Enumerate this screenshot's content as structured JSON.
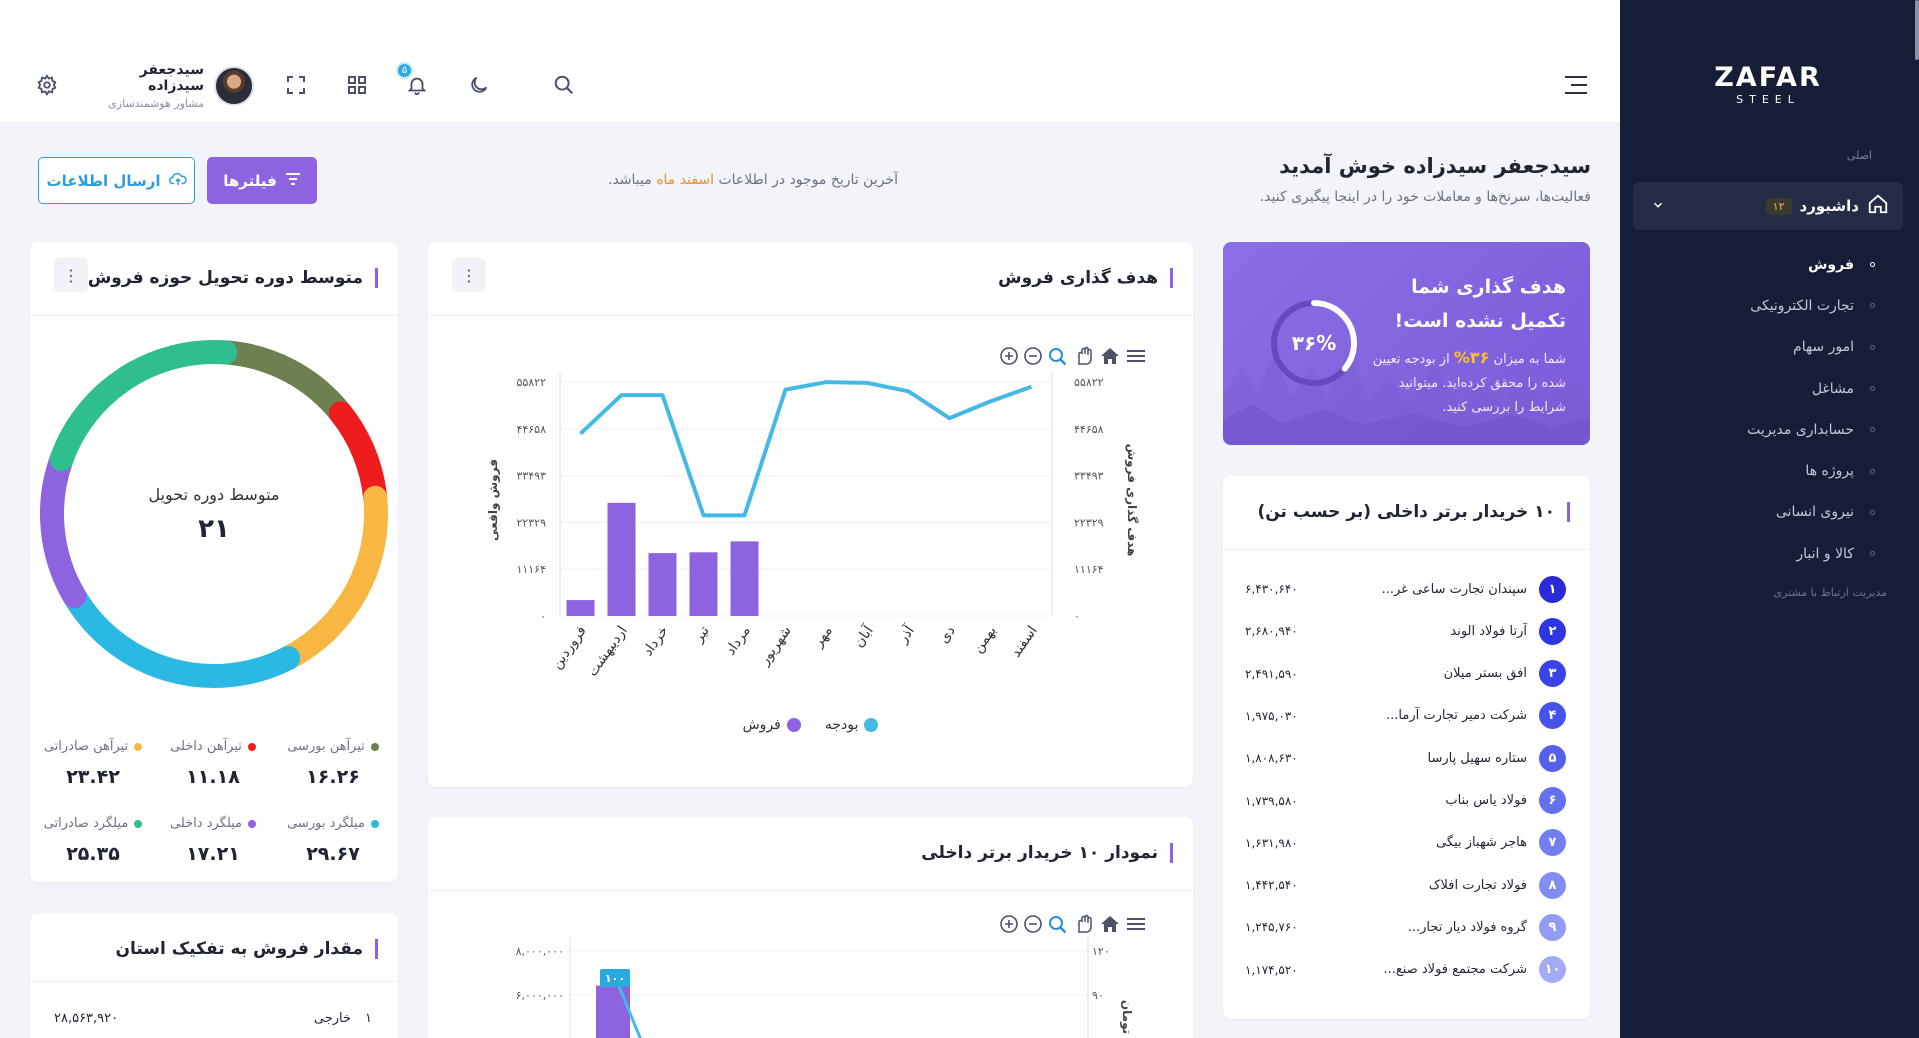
{
  "sidebar": {
    "logo_main": "ZAFAR",
    "logo_sub": "STEEL",
    "section_label": "اصلی",
    "dashboard_label": "داشبورد",
    "dashboard_badge": "۱۲",
    "items": [
      {
        "label": "فروش",
        "active": true
      },
      {
        "label": "تجارت الکترونیکی"
      },
      {
        "label": "امور سهام"
      },
      {
        "label": "مشاغل"
      },
      {
        "label": "حسابداری مدیریت"
      },
      {
        "label": "پروژه ها"
      },
      {
        "label": "نیروی انسانی"
      },
      {
        "label": "کالا و انبار"
      }
    ],
    "footer_label": "مدیریت ارتباط با مشتری"
  },
  "header": {
    "user_name": "سیدجعفر سیدزاده",
    "user_role": "مشاور هوشمندسازی",
    "notif_count": "۵"
  },
  "page": {
    "welcome_title": "سیدجعفر سیدزاده خوش آمدید",
    "welcome_sub": "فعالیت‌ها، سرنخ‌ها و معاملات خود را در اینجا پیگیری کنید.",
    "last_date_pre": "آخرین تاریخ موجود در اطلاعات",
    "last_date_hl": "اسفند ماه",
    "last_date_post": "میباشد.",
    "filter_btn": "فیلترها",
    "send_btn": "ارسال اطلاعات"
  },
  "goal": {
    "title": "هدف گذاری شما تکمیل نشده است!",
    "text_pre": "شما به میزان",
    "text_pct": "۳۶%",
    "text_post": "از بودجه تعیین شده را محقق کرده‌اید. میتوانید شرایط را بررسی کنید.",
    "ring_label": "۳۶%",
    "progress": 0.36
  },
  "buyers": {
    "title": "۱۰ خریدار برتر داخلی (بر حسب تن)",
    "rows": [
      {
        "num": "۱",
        "name": "سپندان تجارت ساعی غر...",
        "value": "۶,۴۳۰,۶۴۰",
        "color": "#2a2ad6"
      },
      {
        "num": "۲",
        "name": "آرتا فولاد الوند",
        "value": "۲,۶۸۰,۹۴۰",
        "color": "#2f35e0"
      },
      {
        "num": "۳",
        "name": "افق بستر میلان",
        "value": "۲,۴۹۱,۵۹۰",
        "color": "#3a44e6"
      },
      {
        "num": "۴",
        "name": "شرکت دمیر تجارت آرما...",
        "value": "۱,۹۷۵,۰۳۰",
        "color": "#4652ea"
      },
      {
        "num": "۵",
        "name": "ستاره سهیل پارسا",
        "value": "۱,۸۰۸,۶۳۰",
        "color": "#5561ed"
      },
      {
        "num": "۶",
        "name": "فولاد یاس بناب",
        "value": "۱,۷۳۹,۵۸۰",
        "color": "#6470ef"
      },
      {
        "num": "۷",
        "name": "هاجر شهباز بیگی",
        "value": "۱,۶۳۱,۹۸۰",
        "color": "#737ff1"
      },
      {
        "num": "۸",
        "name": "فولاد تجارت افلاک",
        "value": "۱,۴۴۲,۵۴۰",
        "color": "#828df3"
      },
      {
        "num": "۹",
        "name": "گروه فولاد دیار تجار...",
        "value": "۱,۲۴۵,۷۶۰",
        "color": "#939cf5"
      },
      {
        "num": "۱۰",
        "name": "شرکت مجتمع فولاد صنع...",
        "value": "۱,۱۷۴,۵۲۰",
        "color": "#a3abf7"
      }
    ]
  },
  "sales_goal": {
    "title": "هدف گذاری فروش",
    "legend_budget": "بودجه",
    "legend_sales": "فروش",
    "left_axis_title": "فروش واقعی",
    "right_axis_title": "هدف گذاری فروش"
  },
  "top10_chart": {
    "title": "نمودار ۱۰ خریدار برتر داخلی",
    "data_label": "۱۰۰",
    "right_axis_title": "تومان"
  },
  "delivery": {
    "title": "متوسط دوره تحویل حوزه فروش",
    "center_label": "متوسط دوره تحویل",
    "center_value": "۲۱",
    "legend": [
      {
        "label": "تیرآهن بورسی",
        "value": "۱۶.۲۶",
        "color": "#6e8050"
      },
      {
        "label": "تیرآهن داخلی",
        "value": "۱۱.۱۸",
        "color": "#ee1c1c"
      },
      {
        "label": "تیرآهن صادراتی",
        "value": "۲۳.۴۲",
        "color": "#f7b742"
      },
      {
        "label": "میلگرد بورسی",
        "value": "۲۹.۶۷",
        "color": "#2cb8e4"
      },
      {
        "label": "میلگرد داخلی",
        "value": "۱۷.۲۱",
        "color": "#8e63e0"
      },
      {
        "label": "میلگرد صادراتی",
        "value": "۲۵.۳۵",
        "color": "#2fbf8f"
      }
    ]
  },
  "province": {
    "title": "مقدار فروش به تفکیک استان",
    "first_row_index": "۱",
    "first_row_label": "خارجی",
    "first_row_value": "۲۸,۵۶۳,۹۲۰"
  },
  "chart_data": [
    {
      "type": "bar",
      "title": "هدف گذاری فروش",
      "categories": [
        "فروردین",
        "اردیبهشت",
        "خرداد",
        "تیر",
        "مرداد",
        "شهریور",
        "مهر",
        "آبان",
        "آذر",
        "دی",
        "بهمن",
        "اسفند"
      ],
      "y_ticks_left": [
        "۰",
        "۱۱۱۶۴",
        "۲۲۳۲۹",
        "۳۳۴۹۳",
        "۴۴۶۵۸",
        "۵۵۸۲۲"
      ],
      "y_ticks_right": [
        "۰",
        "۱۱۱۶۴",
        "۲۲۳۲۹",
        "۳۳۴۹۳",
        "۴۴۶۵۸",
        "۵۵۸۲۲"
      ],
      "ylim": [
        0,
        55822
      ],
      "ylabel": "فروش واقعی",
      "y2label": "هدف گذاری فروش",
      "series": [
        {
          "name": "فروش",
          "type": "bar",
          "color": "#8e63e0",
          "values": [
            3800,
            27000,
            15000,
            15200,
            17800,
            null,
            null,
            null,
            null,
            null,
            null,
            null
          ]
        },
        {
          "name": "بودجه",
          "type": "line",
          "color": "#45b9e5",
          "values": [
            43500,
            52700,
            52700,
            24000,
            24000,
            54000,
            55800,
            55600,
            53600,
            47200,
            51200,
            54700
          ]
        }
      ],
      "legend_position": "bottom"
    },
    {
      "type": "bar",
      "title": "نمودار ۱۰ خریدار برتر داخلی",
      "y_ticks_left": [
        "۶,۰۰۰,۰۰۰",
        "۸,۰۰۰,۰۰۰"
      ],
      "y_ticks_right": [
        "۹۰",
        "۱۲۰"
      ],
      "y2label": "تومان",
      "series": [
        {
          "name": "",
          "type": "bar",
          "color": "#8e63e0",
          "values": [
            6430640
          ]
        }
      ],
      "data_label": "۱۰۰"
    },
    {
      "type": "pie",
      "title": "متوسط دوره تحویل حوزه فروش",
      "center_label": "متوسط دوره تحویل",
      "center_value": "۲۱",
      "slices": [
        {
          "name": "تیرآهن بورسی",
          "value": 16.26,
          "color": "#6e8050"
        },
        {
          "name": "تیرآهن داخلی",
          "value": 11.18,
          "color": "#ee1c1c"
        },
        {
          "name": "تیرآهن صادراتی",
          "value": 23.42,
          "color": "#f7b742"
        },
        {
          "name": "میلگرد بورسی",
          "value": 29.67,
          "color": "#2cb8e4"
        },
        {
          "name": "میلگرد داخلی",
          "value": 17.21,
          "color": "#8e63e0"
        },
        {
          "name": "میلگرد صادراتی",
          "value": 25.35,
          "color": "#2fbf8f"
        }
      ]
    }
  ]
}
